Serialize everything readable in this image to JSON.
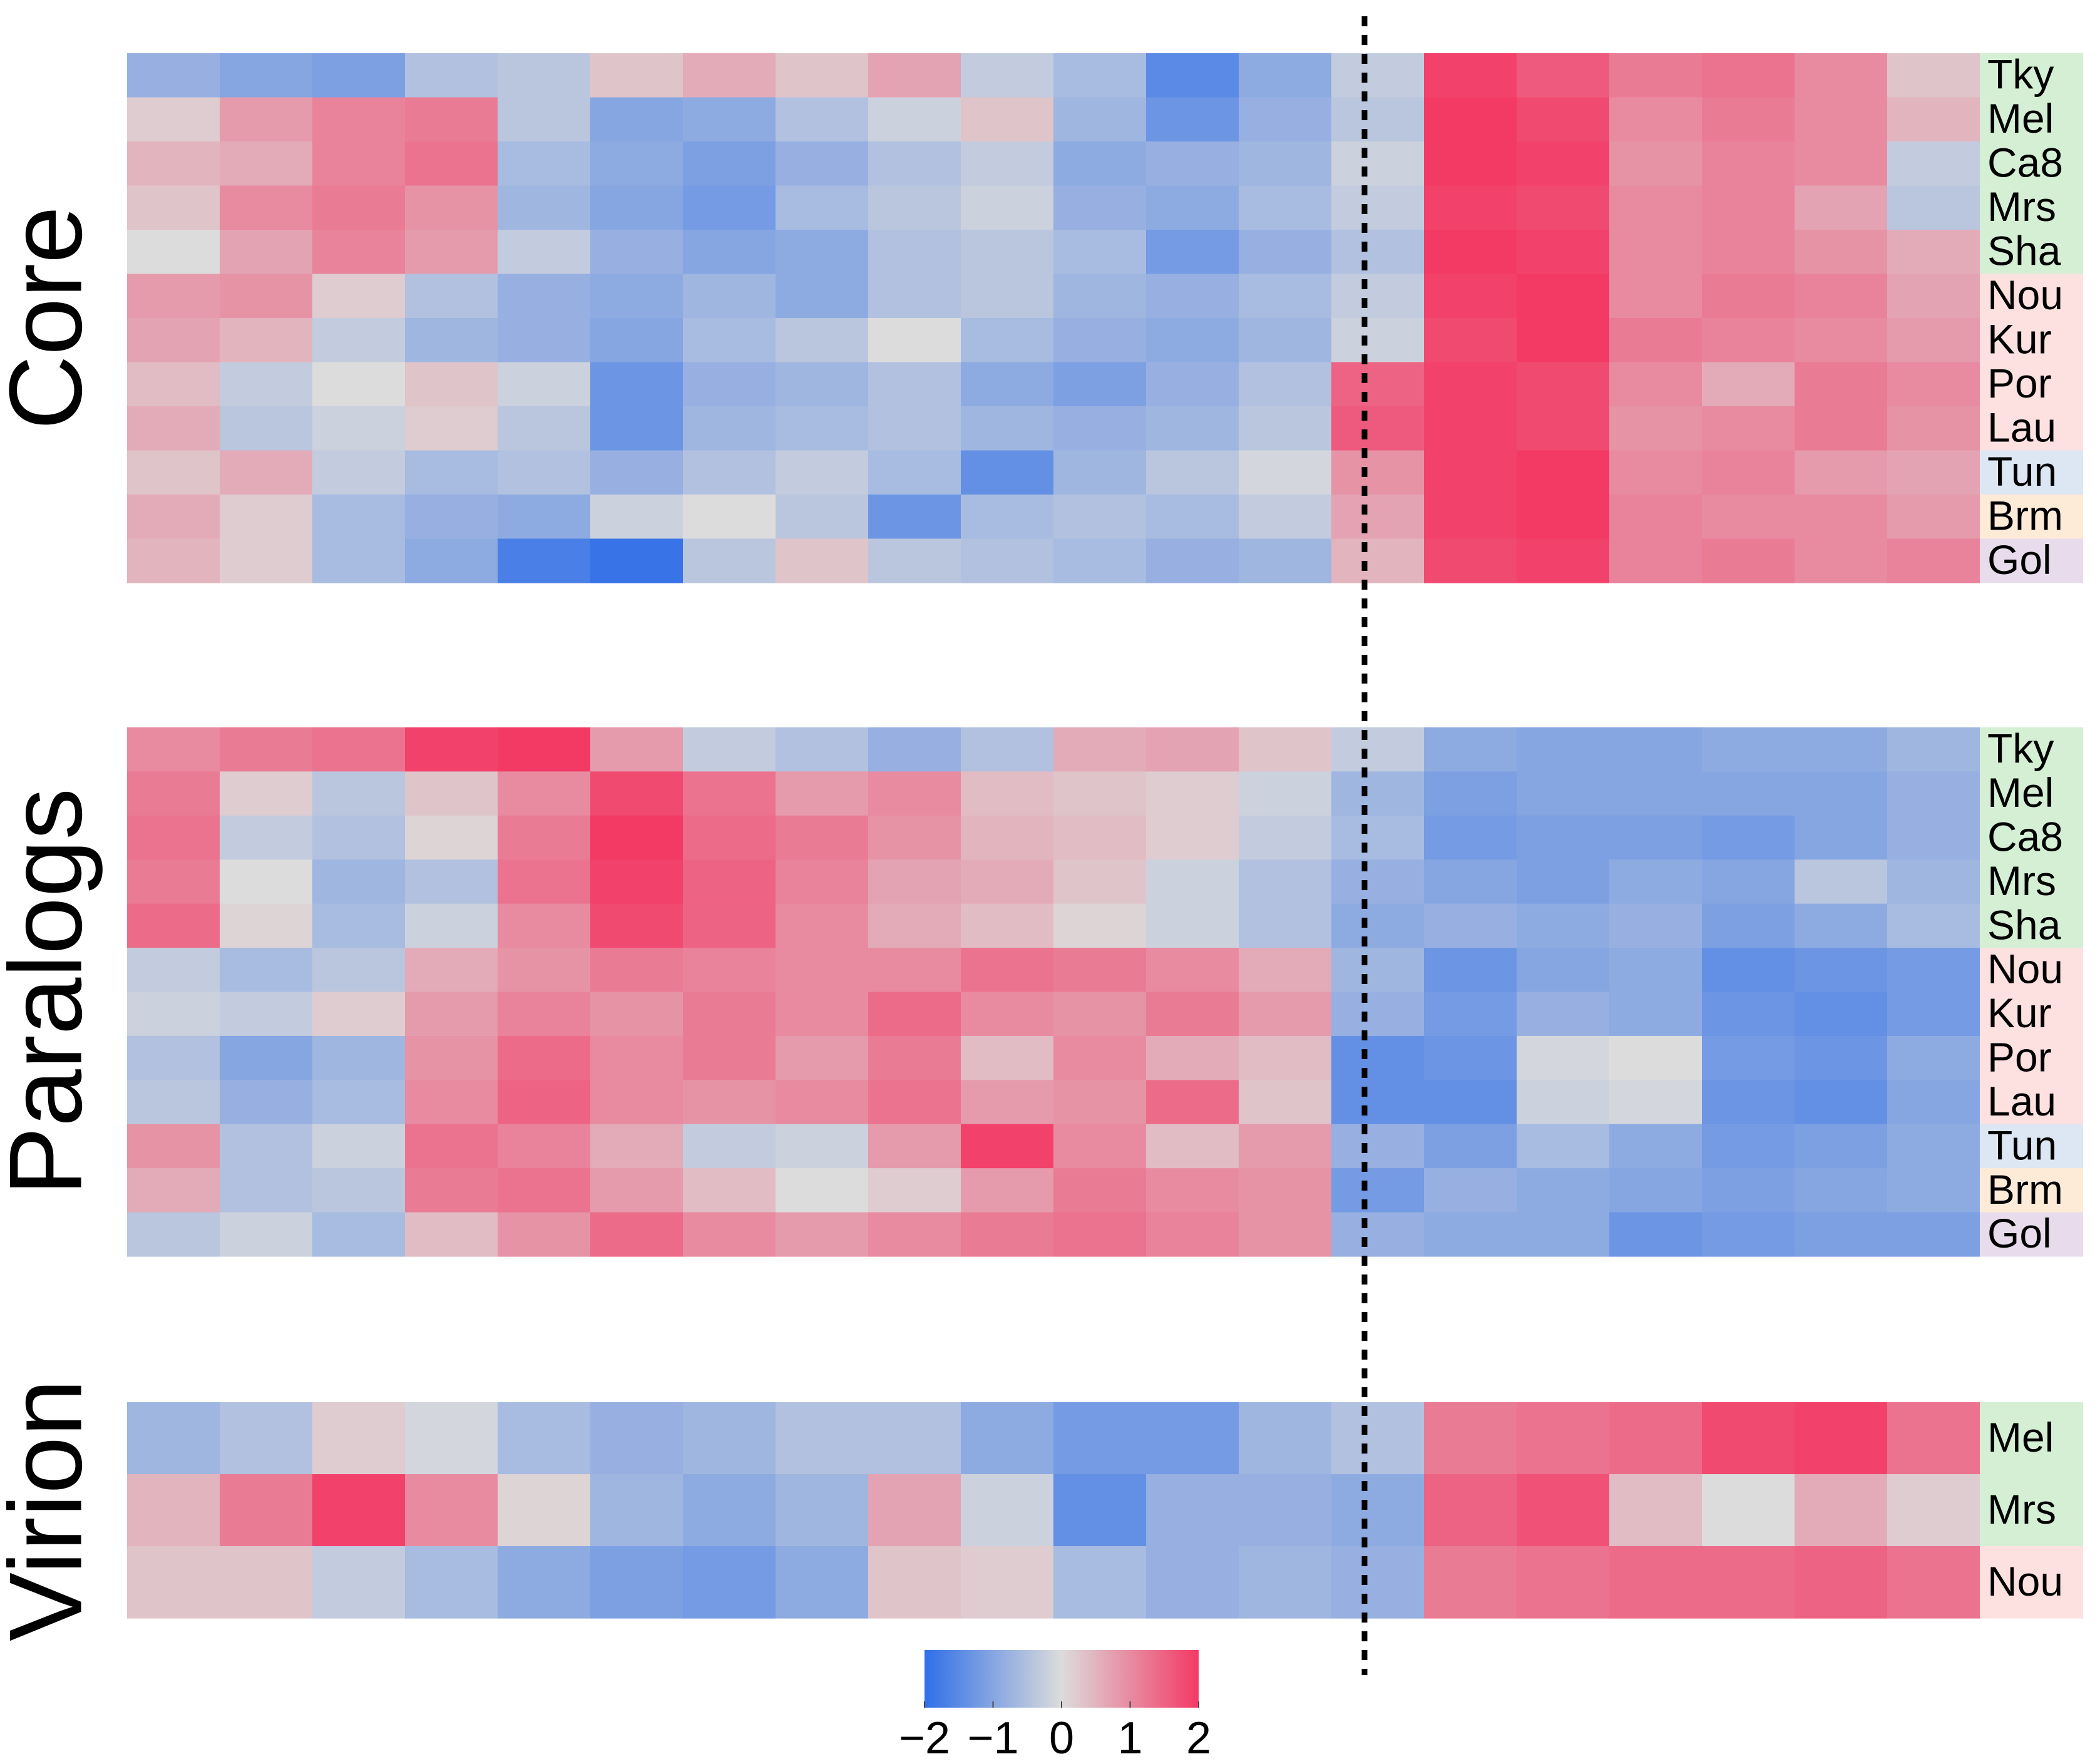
{
  "chart_data": {
    "type": "heatmap",
    "zlim": [
      -2,
      2
    ],
    "zticks": [
      {
        "value": -2,
        "label": "−2"
      },
      {
        "value": -1,
        "label": "−1"
      },
      0,
      1,
      2
    ],
    "colors": [
      "#2f6fe8",
      "#dcdcdc",
      "#f33a65"
    ],
    "panels": [
      {
        "title": "Core",
        "rows": [
          "Tky",
          "Mel",
          "Ca8",
          "Mrs",
          "Sha",
          "Nou",
          "Kur",
          "Por",
          "Lau",
          "Tun",
          "Brm",
          "Gol"
        ],
        "label_colors": [
          "#d4efd4",
          "#d4efd4",
          "#d4efd4",
          "#d4efd4",
          "#d4efd4",
          "#fde0e0",
          "#fde0e0",
          "#fde0e0",
          "#fde0e0",
          "#dde6f3",
          "#fdebd8",
          "#e8dcec"
        ],
        "values": [
          [
            -0.8,
            -1.0,
            -1.1,
            -0.5,
            -0.4,
            0.3,
            0.6,
            0.3,
            0.7,
            -0.3,
            -0.6,
            -1.5,
            -0.9,
            -0.3,
            1.9,
            1.6,
            1.2,
            1.3,
            1.0,
            0.3
          ],
          [
            0.2,
            0.8,
            1.1,
            1.2,
            -0.4,
            -1.0,
            -0.9,
            -0.5,
            -0.2,
            0.3,
            -0.7,
            -1.3,
            -0.8,
            -0.4,
            2.0,
            1.8,
            1.0,
            1.2,
            1.0,
            0.5
          ],
          [
            0.5,
            0.6,
            1.1,
            1.3,
            -0.6,
            -0.9,
            -1.1,
            -0.8,
            -0.5,
            -0.3,
            -0.9,
            -0.8,
            -0.7,
            -0.2,
            2.0,
            1.9,
            0.9,
            1.1,
            1.0,
            -0.3
          ],
          [
            0.3,
            1.0,
            1.2,
            0.9,
            -0.7,
            -1.0,
            -1.2,
            -0.6,
            -0.4,
            -0.2,
            -0.8,
            -0.9,
            -0.6,
            -0.3,
            1.9,
            1.8,
            1.0,
            1.1,
            0.7,
            -0.4
          ],
          [
            0.0,
            0.7,
            1.1,
            0.8,
            -0.3,
            -0.8,
            -1.0,
            -0.9,
            -0.5,
            -0.4,
            -0.6,
            -1.2,
            -0.8,
            -0.5,
            2.0,
            1.9,
            1.0,
            1.1,
            0.9,
            0.6
          ],
          [
            0.8,
            0.9,
            0.2,
            -0.5,
            -0.8,
            -0.9,
            -0.7,
            -0.9,
            -0.5,
            -0.4,
            -0.7,
            -0.8,
            -0.6,
            -0.3,
            1.9,
            2.0,
            1.0,
            1.2,
            1.1,
            0.7
          ],
          [
            0.7,
            0.5,
            -0.3,
            -0.7,
            -0.8,
            -1.0,
            -0.6,
            -0.4,
            0.0,
            -0.6,
            -0.8,
            -0.9,
            -0.7,
            -0.2,
            1.8,
            2.0,
            1.2,
            1.1,
            1.0,
            0.8
          ],
          [
            0.4,
            -0.3,
            0.0,
            0.3,
            -0.2,
            -1.3,
            -0.8,
            -0.7,
            -0.5,
            -0.9,
            -1.1,
            -0.8,
            -0.5,
            1.5,
            1.9,
            1.8,
            1.0,
            0.6,
            1.2,
            1.0
          ],
          [
            0.6,
            -0.4,
            -0.2,
            0.2,
            -0.4,
            -1.3,
            -0.7,
            -0.6,
            -0.5,
            -0.7,
            -0.8,
            -0.7,
            -0.4,
            1.6,
            1.9,
            1.8,
            0.9,
            1.0,
            1.2,
            0.9
          ],
          [
            0.3,
            0.6,
            -0.3,
            -0.6,
            -0.5,
            -0.8,
            -0.5,
            -0.3,
            -0.6,
            -1.4,
            -0.7,
            -0.4,
            -0.1,
            0.9,
            1.9,
            2.0,
            1.0,
            1.1,
            0.8,
            0.7
          ],
          [
            0.6,
            0.2,
            -0.6,
            -0.8,
            -0.9,
            -0.2,
            0.0,
            -0.4,
            -1.3,
            -0.6,
            -0.5,
            -0.6,
            -0.3,
            0.7,
            1.9,
            2.0,
            1.1,
            1.0,
            1.0,
            0.8
          ],
          [
            0.5,
            0.2,
            -0.6,
            -0.9,
            -1.7,
            -1.9,
            -0.4,
            0.3,
            -0.4,
            -0.5,
            -0.6,
            -0.8,
            -0.7,
            0.5,
            1.8,
            1.9,
            1.1,
            1.2,
            1.0,
            1.1
          ]
        ]
      },
      {
        "title": "Paralogs",
        "rows": [
          "Tky",
          "Mel",
          "Ca8",
          "Mrs",
          "Sha",
          "Nou",
          "Kur",
          "Por",
          "Lau",
          "Tun",
          "Brm",
          "Gol"
        ],
        "label_colors": [
          "#d4efd4",
          "#d4efd4",
          "#d4efd4",
          "#d4efd4",
          "#d4efd4",
          "#fde0e0",
          "#fde0e0",
          "#fde0e0",
          "#fde0e0",
          "#dde6f3",
          "#fdebd8",
          "#e8dcec"
        ],
        "values": [
          [
            1.0,
            1.2,
            1.3,
            1.9,
            2.0,
            0.8,
            -0.3,
            -0.5,
            -0.8,
            -0.5,
            0.6,
            0.7,
            0.3,
            -0.3,
            -0.9,
            -1.0,
            -1.0,
            -0.9,
            -0.9,
            -0.7
          ],
          [
            1.2,
            0.2,
            -0.4,
            0.3,
            1.0,
            1.8,
            1.3,
            0.8,
            1.0,
            0.4,
            0.3,
            0.2,
            -0.2,
            -0.7,
            -1.1,
            -1.0,
            -1.0,
            -1.0,
            -1.0,
            -0.8
          ],
          [
            1.3,
            -0.3,
            -0.5,
            0.1,
            1.2,
            2.0,
            1.4,
            1.2,
            0.9,
            0.5,
            0.4,
            0.2,
            -0.3,
            -0.6,
            -1.2,
            -1.1,
            -1.1,
            -1.2,
            -1.0,
            -0.8
          ],
          [
            1.2,
            0.0,
            -0.7,
            -0.5,
            1.3,
            1.9,
            1.5,
            1.1,
            0.7,
            0.6,
            0.3,
            -0.2,
            -0.5,
            -0.8,
            -1.0,
            -1.1,
            -0.9,
            -1.0,
            -0.4,
            -0.7
          ],
          [
            1.4,
            0.1,
            -0.6,
            -0.2,
            1.0,
            1.8,
            1.5,
            1.0,
            0.6,
            0.4,
            0.1,
            -0.2,
            -0.5,
            -0.9,
            -0.8,
            -0.9,
            -0.8,
            -1.1,
            -0.9,
            -0.6
          ],
          [
            -0.3,
            -0.6,
            -0.4,
            0.6,
            0.9,
            1.2,
            1.1,
            1.0,
            1.0,
            1.3,
            1.2,
            1.0,
            0.6,
            -0.7,
            -1.3,
            -1.0,
            -0.9,
            -1.4,
            -1.3,
            -1.2
          ],
          [
            -0.2,
            -0.3,
            0.2,
            0.8,
            1.1,
            0.9,
            1.2,
            1.0,
            1.4,
            1.0,
            0.9,
            1.2,
            0.8,
            -0.8,
            -1.2,
            -0.8,
            -0.9,
            -1.3,
            -1.4,
            -1.2
          ],
          [
            -0.5,
            -1.0,
            -0.7,
            0.9,
            1.4,
            1.0,
            1.2,
            0.8,
            1.2,
            0.4,
            1.0,
            0.6,
            0.4,
            -1.4,
            -1.3,
            -0.1,
            0.0,
            -1.2,
            -1.3,
            -0.9
          ],
          [
            -0.4,
            -0.8,
            -0.6,
            1.0,
            1.5,
            1.0,
            0.9,
            1.0,
            1.3,
            0.8,
            0.9,
            1.4,
            0.3,
            -1.4,
            -1.4,
            -0.2,
            -0.1,
            -1.3,
            -1.4,
            -1.0
          ],
          [
            0.9,
            -0.5,
            -0.2,
            1.3,
            1.1,
            0.6,
            -0.3,
            -0.2,
            0.8,
            1.9,
            1.0,
            0.4,
            0.8,
            -0.8,
            -1.1,
            -0.6,
            -0.9,
            -1.2,
            -1.1,
            -0.9
          ],
          [
            0.6,
            -0.5,
            -0.4,
            1.2,
            1.3,
            0.8,
            0.4,
            0.0,
            0.2,
            0.8,
            1.2,
            1.0,
            0.9,
            -1.2,
            -0.8,
            -0.9,
            -1.0,
            -1.1,
            -1.0,
            -0.9
          ],
          [
            -0.4,
            -0.2,
            -0.6,
            0.4,
            0.9,
            1.4,
            1.0,
            0.8,
            1.0,
            1.2,
            1.3,
            1.1,
            0.9,
            -0.8,
            -0.9,
            -0.9,
            -1.3,
            -1.2,
            -1.1,
            -1.1
          ]
        ]
      },
      {
        "title": "Virion",
        "rows": [
          "Mel",
          "Mrs",
          "Nou"
        ],
        "label_colors": [
          "#d4efd4",
          "#d4efd4",
          "#fde0e0"
        ],
        "values": [
          [
            -0.7,
            -0.5,
            0.2,
            -0.1,
            -0.6,
            -0.8,
            -0.7,
            -0.5,
            -0.5,
            -0.9,
            -1.2,
            -1.2,
            -0.7,
            -0.5,
            1.2,
            1.3,
            1.4,
            1.8,
            1.9,
            1.3
          ],
          [
            0.5,
            1.2,
            1.9,
            1.0,
            0.1,
            -0.7,
            -0.9,
            -0.7,
            0.7,
            -0.2,
            -1.4,
            -0.8,
            -0.8,
            -0.9,
            1.5,
            1.7,
            0.4,
            0.0,
            0.6,
            0.2
          ],
          [
            0.3,
            0.3,
            -0.3,
            -0.6,
            -0.9,
            -1.1,
            -1.2,
            -0.9,
            0.3,
            0.2,
            -0.6,
            -0.8,
            -0.7,
            -0.8,
            1.2,
            1.3,
            1.4,
            1.4,
            1.5,
            1.3
          ]
        ]
      }
    ]
  }
}
